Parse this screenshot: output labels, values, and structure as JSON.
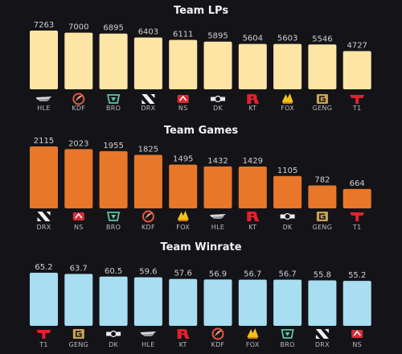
{
  "colors": {
    "background": "#141418",
    "title": "#f2f2f4",
    "value_text": "#cfcfd4",
    "category_text": "#b9b9c0"
  },
  "chart_data": [
    {
      "type": "bar",
      "title": "Team LPs",
      "color": "#fde5a6",
      "categories": [
        "HLE",
        "KDF",
        "BRO",
        "DRX",
        "NS",
        "DK",
        "KT",
        "FOX",
        "GENG",
        "T1"
      ],
      "icons": [
        "hle-logo-icon",
        "kdf-logo-icon",
        "bro-logo-icon",
        "drx-logo-icon",
        "ns-logo-icon",
        "dk-logo-icon",
        "kt-logo-icon",
        "fox-logo-icon",
        "geng-logo-icon",
        "t1-logo-icon"
      ],
      "values": [
        7263,
        7000,
        6895,
        6403,
        6111,
        5895,
        5604,
        5603,
        5546,
        4727
      ],
      "value_labels": [
        "7263",
        "7000",
        "6895",
        "6403",
        "6111",
        "5895",
        "5604",
        "5603",
        "5546",
        "4727"
      ],
      "ylim": [
        0,
        7263
      ],
      "grid": false
    },
    {
      "type": "bar",
      "title": "Team Games",
      "color": "#e8772a",
      "categories": [
        "DRX",
        "NS",
        "BRO",
        "KDF",
        "FOX",
        "HLE",
        "KT",
        "DK",
        "GENG",
        "T1"
      ],
      "icons": [
        "drx-logo-icon",
        "ns-logo-icon",
        "bro-logo-icon",
        "kdf-logo-icon",
        "fox-logo-icon",
        "hle-logo-icon",
        "kt-logo-icon",
        "dk-logo-icon",
        "geng-logo-icon",
        "t1-logo-icon"
      ],
      "values": [
        2115,
        2023,
        1955,
        1825,
        1495,
        1432,
        1429,
        1105,
        782,
        664
      ],
      "value_labels": [
        "2115",
        "2023",
        "1955",
        "1825",
        "1495",
        "1432",
        "1429",
        "1105",
        "782",
        "664"
      ],
      "ylim": [
        0,
        2115
      ],
      "grid": false
    },
    {
      "type": "bar",
      "title": "Team Winrate",
      "color": "#a8ddf2",
      "categories": [
        "T1",
        "GENG",
        "DK",
        "HLE",
        "KT",
        "KDF",
        "FOX",
        "BRO",
        "DRX",
        "NS"
      ],
      "icons": [
        "t1-logo-icon",
        "geng-logo-icon",
        "dk-logo-icon",
        "hle-logo-icon",
        "kt-logo-icon",
        "kdf-logo-icon",
        "fox-logo-icon",
        "bro-logo-icon",
        "drx-logo-icon",
        "ns-logo-icon"
      ],
      "values": [
        65.2,
        63.7,
        60.5,
        59.6,
        57.6,
        56.9,
        56.7,
        56.7,
        55.8,
        55.2
      ],
      "value_labels": [
        "65.2",
        "63.7",
        "60.5",
        "59.6",
        "57.6",
        "56.9",
        "56.7",
        "56.7",
        "55.8",
        "55.2"
      ],
      "ylim": [
        0,
        65.2
      ],
      "grid": false
    }
  ]
}
